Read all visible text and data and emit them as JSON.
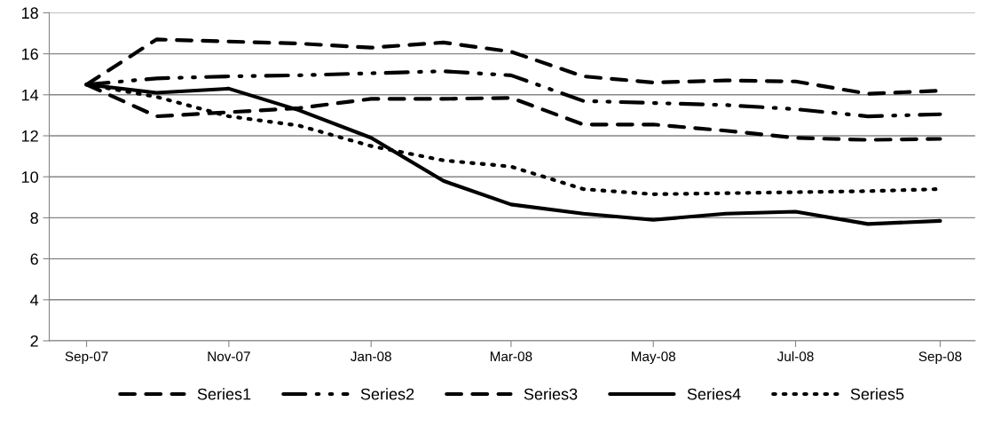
{
  "chart_data": {
    "type": "line",
    "x": [
      "2007-09",
      "2007-10",
      "2007-11",
      "2007-12",
      "2008-01",
      "2008-02",
      "2008-03",
      "2008-04",
      "2008-05",
      "2008-06",
      "2008-07",
      "2008-08",
      "2008-09"
    ],
    "series": [
      {
        "name": "Series1",
        "color": "#000000",
        "line_style": "dashed",
        "values": [
          14.5,
          16.7,
          16.6,
          16.5,
          16.3,
          16.55,
          16.1,
          14.9,
          14.6,
          14.7,
          14.65,
          14.05,
          14.2
        ]
      },
      {
        "name": "Series2",
        "color": "#000000",
        "line_style": "dashdot",
        "values": [
          14.5,
          14.8,
          14.9,
          14.95,
          15.05,
          15.15,
          14.95,
          13.7,
          13.6,
          13.5,
          13.3,
          12.95,
          13.05
        ]
      },
      {
        "name": "Series3",
        "color": "#000000",
        "line_style": "dashed",
        "values": [
          14.5,
          12.95,
          13.15,
          13.35,
          13.8,
          13.8,
          13.85,
          12.55,
          12.55,
          12.25,
          11.9,
          11.8,
          11.85
        ]
      },
      {
        "name": "Series4",
        "color": "#000000",
        "line_style": "solid",
        "values": [
          14.5,
          14.1,
          14.3,
          13.25,
          11.9,
          9.8,
          8.65,
          8.2,
          7.9,
          8.2,
          8.3,
          7.7,
          7.85
        ]
      },
      {
        "name": "Series5",
        "color": "#000000",
        "line_style": "dotted",
        "values": [
          14.5,
          13.9,
          12.95,
          12.5,
          11.5,
          10.8,
          10.5,
          9.4,
          9.15,
          9.2,
          9.25,
          9.3,
          9.4
        ]
      }
    ],
    "xlim": [
      "2007-08-16",
      "2008-09-16"
    ],
    "xticks": [
      {
        "value": "2007-09",
        "label": "Sep-07"
      },
      {
        "value": "2007-11",
        "label": "Nov-07"
      },
      {
        "value": "2008-01",
        "label": "Jan-08"
      },
      {
        "value": "2008-03",
        "label": "Mar-08"
      },
      {
        "value": "2008-05",
        "label": "May-08"
      },
      {
        "value": "2008-07",
        "label": "Jul-08"
      },
      {
        "value": "2008-09",
        "label": "Sep-08"
      }
    ],
    "ylim": [
      2,
      18
    ],
    "yticks": [
      2,
      4,
      6,
      8,
      10,
      12,
      14,
      16,
      18
    ],
    "grid": "y",
    "legend": "bottom",
    "marker": "none"
  }
}
